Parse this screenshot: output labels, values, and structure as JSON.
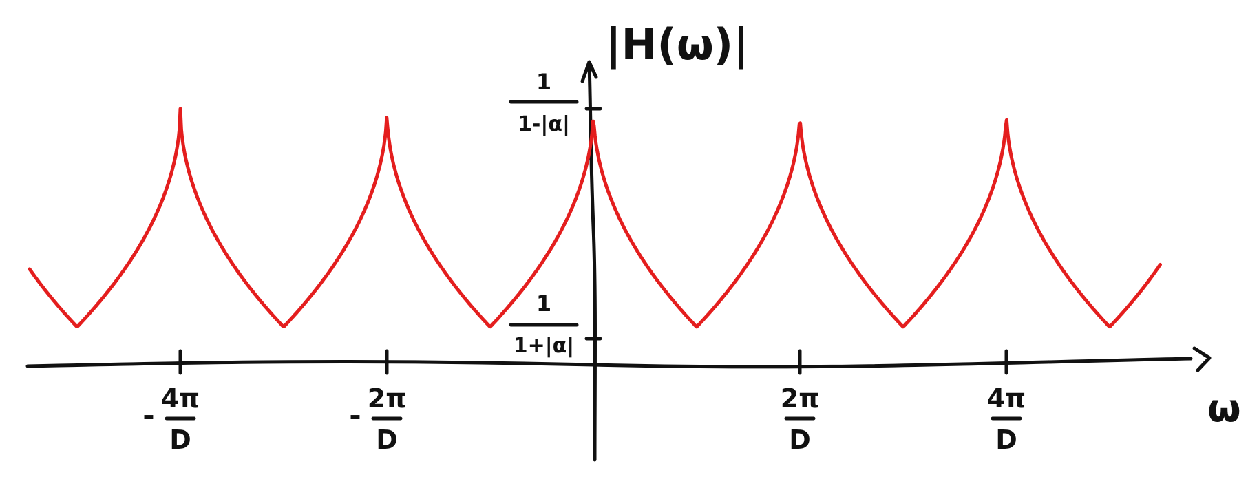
{
  "chart_data": {
    "type": "line",
    "ylabel": "|H(ω)|",
    "xlabel": "ω",
    "x_unit_note": "x in units of π/D",
    "xlim": [
      -5.6,
      5.6
    ],
    "ylim": [
      0.35,
      1.05
    ],
    "x_ticks": [
      {
        "value": -4,
        "minus": "-",
        "num": "4π",
        "den": "D"
      },
      {
        "value": -2,
        "minus": "-",
        "num": "2π",
        "den": "D"
      },
      {
        "value": 2,
        "minus": "",
        "num": "2π",
        "den": "D"
      },
      {
        "value": 4,
        "minus": "",
        "num": "4π",
        "den": "D"
      }
    ],
    "y_ticks": [
      {
        "value": 1.0,
        "num": "1",
        "den": "1-|α|"
      },
      {
        "value": 0.5,
        "num": "1",
        "den": "1+|α|"
      }
    ],
    "series": [
      {
        "color": "#e41e1e",
        "peak_value": 1.0,
        "min_value": 0.5,
        "period": 2,
        "peaks_at": [
          -4,
          -2,
          0,
          2,
          4
        ]
      }
    ]
  }
}
